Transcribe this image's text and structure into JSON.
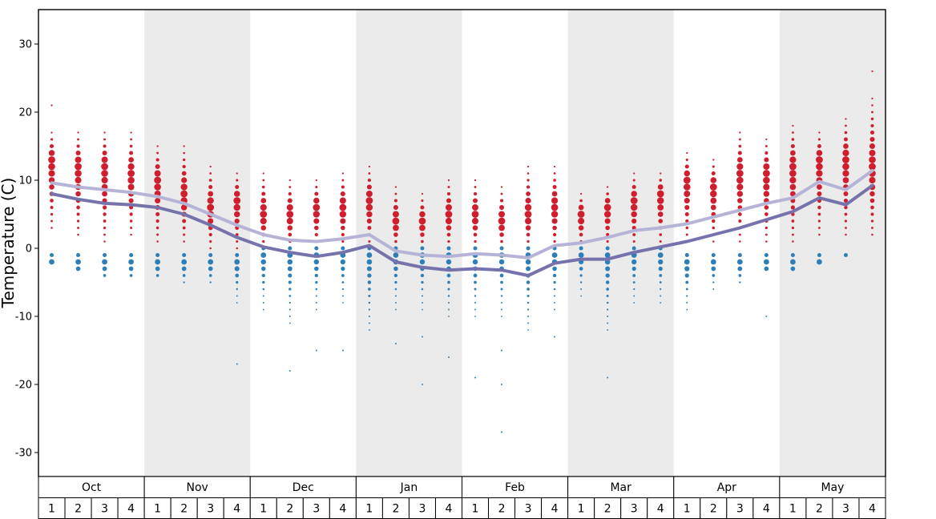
{
  "figure": {
    "background": "#ffffff",
    "band_color": "#ebebeb",
    "border_color": "#000000"
  },
  "axis": {
    "y_title": "Temperature (C)",
    "y_ticks": [
      "30",
      "20",
      "10",
      "0",
      "-10",
      "-20",
      "-30"
    ],
    "y_tick_values": [
      30,
      20,
      10,
      0,
      -10,
      -20,
      -30
    ]
  },
  "colors": {
    "max_dots": "#cf1f2e",
    "min_dots": "#2e7eb8",
    "avg_max_line": "#b6b4d6",
    "avg_min_line": "#7672ab"
  },
  "chart_data": {
    "type": "scatter",
    "title": "",
    "xlabel": "",
    "ylabel": "Temperature (C)",
    "ylim": [
      -33.5,
      35.1
    ],
    "y_ticks": [
      30,
      20,
      10,
      0,
      -10,
      -20,
      -30
    ],
    "grid": false,
    "months": [
      {
        "label": "Oct",
        "shaded": false
      },
      {
        "label": "Nov",
        "shaded": true
      },
      {
        "label": "Dec",
        "shaded": false
      },
      {
        "label": "Jan",
        "shaded": true
      },
      {
        "label": "Feb",
        "shaded": false
      },
      {
        "label": "Mar",
        "shaded": true
      },
      {
        "label": "Apr",
        "shaded": false
      },
      {
        "label": "May",
        "shaded": true
      }
    ],
    "series_legend": [
      {
        "name": "max-temperature-distribution-dots",
        "color": "#cf1f2e"
      },
      {
        "name": "min-temperature-distribution-dots",
        "color": "#2e7eb8"
      },
      {
        "name": "average-max-line",
        "color": "#b6b4d6"
      },
      {
        "name": "average-min-line",
        "color": "#7672ab"
      }
    ],
    "weeks": [
      {
        "month": "Oct",
        "week": "1",
        "red": {
          "lo": 3,
          "hi": 17,
          "peak": 13,
          "extra": [
            21
          ]
        },
        "blue": {
          "hi": -1,
          "lo": -2,
          "extra": []
        },
        "avg_max": 9.6,
        "avg_min": 8.0
      },
      {
        "month": "Oct",
        "week": "2",
        "red": {
          "lo": 2,
          "hi": 17,
          "peak": 12,
          "extra": []
        },
        "blue": {
          "hi": -1,
          "lo": -3,
          "extra": []
        },
        "avg_max": 9.0,
        "avg_min": 7.2
      },
      {
        "month": "Oct",
        "week": "3",
        "red": {
          "lo": 1,
          "hi": 17,
          "peak": 12,
          "extra": []
        },
        "blue": {
          "hi": -1,
          "lo": -4,
          "extra": []
        },
        "avg_max": 8.6,
        "avg_min": 6.6
      },
      {
        "month": "Oct",
        "week": "4",
        "red": {
          "lo": 2,
          "hi": 17,
          "peak": 11,
          "extra": []
        },
        "blue": {
          "hi": -1,
          "lo": -4,
          "extra": []
        },
        "avg_max": 8.2,
        "avg_min": 6.4
      },
      {
        "month": "Nov",
        "week": "1",
        "red": {
          "lo": 1,
          "hi": 15,
          "peak": 10,
          "extra": []
        },
        "blue": {
          "hi": -1,
          "lo": -4,
          "extra": []
        },
        "avg_max": 7.6,
        "avg_min": 6.0
      },
      {
        "month": "Nov",
        "week": "2",
        "red": {
          "lo": 1,
          "hi": 15,
          "peak": 8,
          "extra": []
        },
        "blue": {
          "hi": -1,
          "lo": -5,
          "extra": []
        },
        "avg_max": 6.6,
        "avg_min": 5.0
      },
      {
        "month": "Nov",
        "week": "3",
        "red": {
          "lo": 0,
          "hi": 12,
          "peak": 6,
          "extra": []
        },
        "blue": {
          "hi": -1,
          "lo": -5,
          "extra": []
        },
        "avg_max": 5.0,
        "avg_min": 3.4
      },
      {
        "month": "Nov",
        "week": "4",
        "red": {
          "lo": 0,
          "hi": 11,
          "peak": 7,
          "extra": []
        },
        "blue": {
          "hi": -1,
          "lo": -8,
          "extra": [
            -17
          ]
        },
        "avg_max": 3.4,
        "avg_min": 1.6
      },
      {
        "month": "Dec",
        "week": "1",
        "red": {
          "lo": 0,
          "hi": 11,
          "peak": 5,
          "extra": []
        },
        "blue": {
          "hi": 0,
          "lo": -9,
          "extra": []
        },
        "avg_max": 2.0,
        "avg_min": 0.2
      },
      {
        "month": "Dec",
        "week": "2",
        "red": {
          "lo": 0,
          "hi": 10,
          "peak": 5,
          "extra": []
        },
        "blue": {
          "hi": 0,
          "lo": -11,
          "extra": [
            -18
          ]
        },
        "avg_max": 1.2,
        "avg_min": -0.6
      },
      {
        "month": "Dec",
        "week": "3",
        "red": {
          "lo": 0,
          "hi": 10,
          "peak": 6,
          "extra": []
        },
        "blue": {
          "hi": 0,
          "lo": -9,
          "extra": [
            -15
          ]
        },
        "avg_max": 1.0,
        "avg_min": -1.2
      },
      {
        "month": "Dec",
        "week": "4",
        "red": {
          "lo": 0,
          "hi": 11,
          "peak": 6,
          "extra": []
        },
        "blue": {
          "hi": 0,
          "lo": -8,
          "extra": [
            -15
          ]
        },
        "avg_max": 1.4,
        "avg_min": -0.6
      },
      {
        "month": "Jan",
        "week": "1",
        "red": {
          "lo": 0,
          "hi": 12,
          "peak": 7,
          "extra": []
        },
        "blue": {
          "hi": 0,
          "lo": -12,
          "extra": []
        },
        "avg_max": 2.0,
        "avg_min": 0.4
      },
      {
        "month": "Jan",
        "week": "2",
        "red": {
          "lo": 0,
          "hi": 9,
          "peak": 4,
          "extra": []
        },
        "blue": {
          "hi": 0,
          "lo": -9,
          "extra": [
            -14
          ]
        },
        "avg_max": -0.4,
        "avg_min": -2.0
      },
      {
        "month": "Jan",
        "week": "3",
        "red": {
          "lo": 0,
          "hi": 8,
          "peak": 4,
          "extra": []
        },
        "blue": {
          "hi": 0,
          "lo": -9,
          "extra": [
            -13,
            -20
          ]
        },
        "avg_max": -1.0,
        "avg_min": -2.8
      },
      {
        "month": "Jan",
        "week": "4",
        "red": {
          "lo": 0,
          "hi": 10,
          "peak": 5,
          "extra": []
        },
        "blue": {
          "hi": 0,
          "lo": -10,
          "extra": [
            -16
          ]
        },
        "avg_max": -1.2,
        "avg_min": -3.2
      },
      {
        "month": "Feb",
        "week": "1",
        "red": {
          "lo": 0,
          "hi": 10,
          "peak": 5,
          "extra": []
        },
        "blue": {
          "hi": 0,
          "lo": -10,
          "extra": [
            -19
          ]
        },
        "avg_max": -0.8,
        "avg_min": -3.0
      },
      {
        "month": "Feb",
        "week": "2",
        "red": {
          "lo": 0,
          "hi": 9,
          "peak": 4,
          "extra": []
        },
        "blue": {
          "hi": 0,
          "lo": -10,
          "extra": [
            -15,
            -20,
            -27
          ]
        },
        "avg_max": -1.0,
        "avg_min": -3.2
      },
      {
        "month": "Feb",
        "week": "3",
        "red": {
          "lo": 0,
          "hi": 12,
          "peak": 5,
          "extra": []
        },
        "blue": {
          "hi": 0,
          "lo": -12,
          "extra": []
        },
        "avg_max": -1.4,
        "avg_min": -4.0
      },
      {
        "month": "Feb",
        "week": "4",
        "red": {
          "lo": 0,
          "hi": 12,
          "peak": 6,
          "extra": []
        },
        "blue": {
          "hi": 0,
          "lo": -9,
          "extra": [
            -13
          ]
        },
        "avg_max": 0.4,
        "avg_min": -2.2
      },
      {
        "month": "Mar",
        "week": "1",
        "red": {
          "lo": 0,
          "hi": 8,
          "peak": 5,
          "extra": []
        },
        "blue": {
          "hi": 0,
          "lo": -7,
          "extra": []
        },
        "avg_max": 0.8,
        "avg_min": -1.6
      },
      {
        "month": "Mar",
        "week": "2",
        "red": {
          "lo": 0,
          "hi": 9,
          "peak": 6,
          "extra": []
        },
        "blue": {
          "hi": 0,
          "lo": -12,
          "extra": [
            -19
          ]
        },
        "avg_max": 1.6,
        "avg_min": -1.6
      },
      {
        "month": "Mar",
        "week": "3",
        "red": {
          "lo": 0,
          "hi": 11,
          "peak": 7,
          "extra": []
        },
        "blue": {
          "hi": 0,
          "lo": -8,
          "extra": []
        },
        "avg_max": 2.6,
        "avg_min": -0.6
      },
      {
        "month": "Mar",
        "week": "4",
        "red": {
          "lo": 0,
          "hi": 11,
          "peak": 8,
          "extra": []
        },
        "blue": {
          "hi": 0,
          "lo": -8,
          "extra": []
        },
        "avg_max": 3.0,
        "avg_min": 0.2
      },
      {
        "month": "Apr",
        "week": "1",
        "red": {
          "lo": 1,
          "hi": 14,
          "peak": 10,
          "extra": []
        },
        "blue": {
          "hi": -1,
          "lo": -9,
          "extra": []
        },
        "avg_max": 3.6,
        "avg_min": 1.0
      },
      {
        "month": "Apr",
        "week": "2",
        "red": {
          "lo": 1,
          "hi": 13,
          "peak": 9,
          "extra": []
        },
        "blue": {
          "hi": -1,
          "lo": -6,
          "extra": []
        },
        "avg_max": 4.6,
        "avg_min": 2.0
      },
      {
        "month": "Apr",
        "week": "3",
        "red": {
          "lo": 1,
          "hi": 17,
          "peak": 11,
          "extra": []
        },
        "blue": {
          "hi": -1,
          "lo": -5,
          "extra": []
        },
        "avg_max": 5.6,
        "avg_min": 3.0
      },
      {
        "month": "Apr",
        "week": "4",
        "red": {
          "lo": 1,
          "hi": 16,
          "peak": 11,
          "extra": []
        },
        "blue": {
          "hi": -1,
          "lo": -3,
          "extra": [
            -10
          ]
        },
        "avg_max": 6.6,
        "avg_min": 4.2
      },
      {
        "month": "May",
        "week": "1",
        "red": {
          "lo": 1,
          "hi": 18,
          "peak": 12,
          "extra": []
        },
        "blue": {
          "hi": -1,
          "lo": -3,
          "extra": []
        },
        "avg_max": 7.4,
        "avg_min": 5.4
      },
      {
        "month": "May",
        "week": "2",
        "red": {
          "lo": 2,
          "hi": 17,
          "peak": 13,
          "extra": []
        },
        "blue": {
          "hi": -1,
          "lo": -2,
          "extra": []
        },
        "avg_max": 9.8,
        "avg_min": 7.4
      },
      {
        "month": "May",
        "week": "3",
        "red": {
          "lo": 2,
          "hi": 19,
          "peak": 13,
          "extra": []
        },
        "blue": {
          "hi": -1,
          "lo": -1,
          "extra": []
        },
        "avg_max": 8.6,
        "avg_min": 6.4
      },
      {
        "month": "May",
        "week": "4",
        "red": {
          "lo": 2,
          "hi": 22,
          "peak": 12,
          "extra": [
            26
          ]
        },
        "blue": null,
        "avg_max": 11.4,
        "avg_min": 9.2
      }
    ]
  }
}
